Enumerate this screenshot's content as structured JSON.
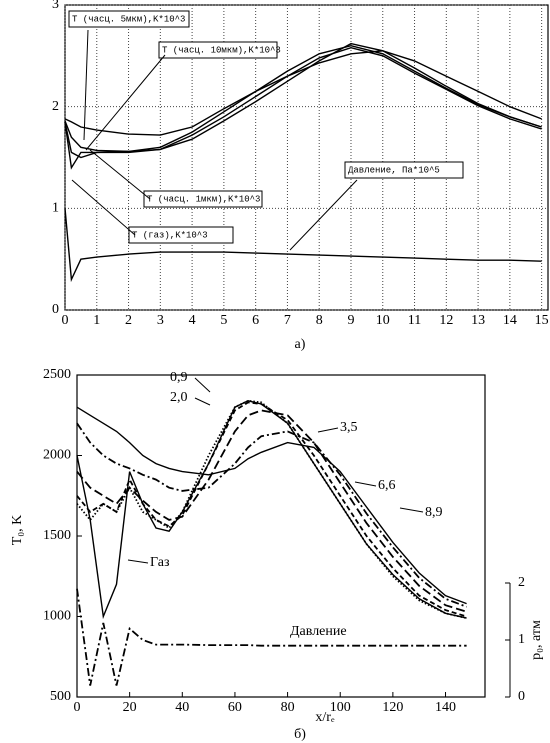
{
  "chart_data": [
    {
      "type": "line",
      "caption": "а)",
      "grid": true,
      "xlim": [
        0,
        15.2
      ],
      "ylim": [
        0,
        3
      ],
      "xticks": [
        0,
        1,
        2,
        3,
        4,
        5,
        6,
        7,
        8,
        9,
        10,
        11,
        12,
        13,
        14,
        15
      ],
      "yticks": [
        0,
        1,
        2,
        3
      ],
      "x": [
        0,
        0.2,
        0.5,
        1,
        2,
        3,
        4,
        5,
        6,
        7,
        8,
        9,
        10,
        11,
        12,
        13,
        14,
        15
      ],
      "series": [
        {
          "name": "T (часц. 5мкм),K*10^3",
          "color": "#000",
          "dash": "solid",
          "values": [
            1.88,
            1.85,
            1.8,
            1.77,
            1.73,
            1.72,
            1.8,
            1.98,
            2.15,
            2.3,
            2.43,
            2.52,
            2.55,
            2.45,
            2.3,
            2.15,
            2.0,
            1.88
          ]
        },
        {
          "name": "T (часц. 10мкм),K*10^3",
          "color": "#000",
          "dash": "solid",
          "values": [
            1.86,
            1.7,
            1.6,
            1.57,
            1.56,
            1.58,
            1.68,
            1.86,
            2.05,
            2.25,
            2.45,
            2.62,
            2.55,
            2.38,
            2.2,
            2.03,
            1.9,
            1.8
          ]
        },
        {
          "name": "T (часц. 1мкм),K*10^3",
          "color": "#000",
          "dash": "solid",
          "values": [
            1.85,
            1.55,
            1.5,
            1.55,
            1.56,
            1.6,
            1.75,
            1.95,
            2.15,
            2.35,
            2.52,
            2.6,
            2.52,
            2.35,
            2.18,
            2.02,
            1.9,
            1.8
          ]
        },
        {
          "name": "T (газ),K*10^3",
          "color": "#000",
          "dash": "solid",
          "values": [
            1.85,
            1.4,
            1.55,
            1.55,
            1.55,
            1.58,
            1.72,
            1.9,
            2.1,
            2.3,
            2.48,
            2.58,
            2.5,
            2.33,
            2.17,
            2.01,
            1.88,
            1.78
          ]
        },
        {
          "name": "Давление, Па*10^5",
          "color": "#000",
          "dash": "solid",
          "values": [
            1.0,
            0.3,
            0.5,
            0.52,
            0.55,
            0.57,
            0.57,
            0.57,
            0.56,
            0.55,
            0.54,
            0.53,
            0.52,
            0.51,
            0.5,
            0.49,
            0.49,
            0.48
          ]
        }
      ]
    },
    {
      "type": "line",
      "caption": "б)",
      "grid": false,
      "xlabel": "x/rₑ",
      "ylabel": "T₀, K",
      "y2label": "p₀, атм",
      "xlim": [
        0,
        155
      ],
      "ylim": [
        500,
        2500
      ],
      "xticks": [
        0,
        20,
        40,
        60,
        80,
        100,
        120,
        140
      ],
      "yticks": [
        500,
        1000,
        1500,
        2000,
        2500
      ],
      "y2lim": [
        0,
        2
      ],
      "y2ticks": [
        0,
        1,
        2
      ],
      "x": [
        0,
        5,
        10,
        15,
        20,
        25,
        30,
        35,
        40,
        50,
        60,
        65,
        70,
        80,
        90,
        100,
        110,
        120,
        130,
        140,
        148
      ],
      "series": [
        {
          "name": "0,9",
          "color": "#000",
          "dash": "dot",
          "values": [
            1700,
            1600,
            1700,
            1650,
            1800,
            1650,
            1600,
            1550,
            1650,
            2000,
            2300,
            2340,
            2330,
            2200,
            1950,
            1700,
            1450,
            1250,
            1100,
            1020,
            990
          ]
        },
        {
          "name": "2,0",
          "color": "#000",
          "dash": "dash",
          "values": [
            1750,
            1650,
            1700,
            1650,
            1850,
            1700,
            1600,
            1560,
            1630,
            1950,
            2280,
            2330,
            2320,
            2220,
            2000,
            1750,
            1500,
            1300,
            1130,
            1040,
            1000
          ]
        },
        {
          "name": "3,5",
          "color": "#000",
          "dash": "longdash",
          "values": [
            1900,
            1800,
            1750,
            1700,
            1800,
            1720,
            1650,
            1600,
            1620,
            1850,
            2150,
            2250,
            2280,
            2250,
            2080,
            1830,
            1580,
            1370,
            1190,
            1070,
            1030
          ]
        },
        {
          "name": "6,6",
          "color": "#000",
          "dash": "dashdot",
          "values": [
            2200,
            2080,
            2000,
            1950,
            1920,
            1880,
            1850,
            1800,
            1780,
            1800,
            1950,
            2050,
            2120,
            2150,
            2080,
            1880,
            1640,
            1430,
            1240,
            1110,
            1060
          ]
        },
        {
          "name": "8,9",
          "color": "#000",
          "dash": "solid",
          "values": [
            2300,
            2250,
            2200,
            2150,
            2080,
            2000,
            1950,
            1920,
            1900,
            1880,
            1920,
            1980,
            2020,
            2080,
            2050,
            1900,
            1680,
            1460,
            1270,
            1130,
            1080
          ]
        },
        {
          "name": "Газ",
          "color": "#000",
          "dash": "solid",
          "values": [
            2000,
            1600,
            1000,
            1200,
            1900,
            1700,
            1550,
            1530,
            1650,
            1950,
            2300,
            2340,
            2320,
            2200,
            1950,
            1700,
            1450,
            1260,
            1110,
            1020,
            990
          ]
        },
        {
          "name": "Давление",
          "color": "#000",
          "dash": "dashdot",
          "axis": "y2",
          "values": [
            1.9,
            0.2,
            1.3,
            0.2,
            1.2,
            1.0,
            0.92,
            0.92,
            0.92,
            0.91,
            0.91,
            0.91,
            0.9,
            0.9,
            0.9,
            0.9,
            0.9,
            0.9,
            0.9,
            0.9,
            0.9
          ]
        }
      ]
    }
  ]
}
